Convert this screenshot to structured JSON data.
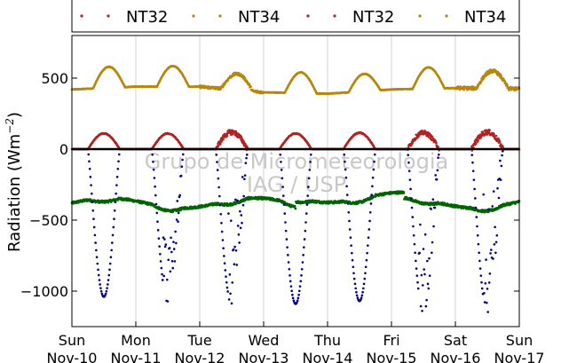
{
  "chart_data": {
    "type": "scatter",
    "ylabel": "Radiation (Wm",
    "ylabel_exponent": "−2",
    "ylabel_close": ")",
    "ylim": [
      -1250,
      800
    ],
    "yticks": [
      {
        "value": 500,
        "label": "500"
      },
      {
        "value": 0,
        "label": "0"
      },
      {
        "value": -500,
        "label": "−500"
      },
      {
        "value": -1000,
        "label": "−1000"
      }
    ],
    "xlim": [
      0,
      7
    ],
    "xticks": [
      {
        "day": 0,
        "weekday": "Sun",
        "date": "Nov-10"
      },
      {
        "day": 1,
        "weekday": "Mon",
        "date": "Nov-11"
      },
      {
        "day": 2,
        "weekday": "Tue",
        "date": "Nov-12"
      },
      {
        "day": 3,
        "weekday": "Wed",
        "date": "Nov-13"
      },
      {
        "day": 4,
        "weekday": "Thu",
        "date": "Nov-14"
      },
      {
        "day": 5,
        "weekday": "Fri",
        "date": "Nov-15"
      },
      {
        "day": 6,
        "weekday": "Sat",
        "date": "Nov-16"
      },
      {
        "day": 7,
        "weekday": "Sun",
        "date": "Nov-17"
      }
    ],
    "grid_x": true,
    "zero_line": true,
    "watermark": [
      "Grupo de Micrometeorologia",
      "IAG / USP"
    ],
    "legend": {
      "placement": "top",
      "entries": [
        {
          "label": "NT32",
          "color": "#b22222"
        },
        {
          "label": "NT34",
          "color": "#b8860b"
        },
        {
          "label": "NT32",
          "color": "#b22222"
        },
        {
          "label": "NT34",
          "color": "#b8860b"
        }
      ]
    },
    "series": [
      {
        "color": "#b8860b",
        "kind": "longwave_down",
        "nightly": [
          420,
          440,
          440,
          400,
          390,
          420,
          430,
          425
        ],
        "peak": [
          580,
          585,
          530,
          540,
          530,
          575,
          550
        ],
        "noise": [
          0,
          0,
          15,
          0,
          0,
          0,
          20
        ]
      },
      {
        "color": "#b22222",
        "kind": "shortwave_reflected",
        "peak": [
          110,
          110,
          120,
          110,
          115,
          115,
          120
        ],
        "noise": [
          0,
          0,
          30,
          0,
          0,
          25,
          30
        ]
      },
      {
        "color": "#006400",
        "kind": "longwave_net",
        "mean": -380
      },
      {
        "color": "#000080",
        "kind": "shortwave_down",
        "peak": [
          -1040,
          -1080,
          -1100,
          -1090,
          -1070,
          -1150,
          -1150
        ],
        "noise": [
          0,
          0.22,
          0.38,
          0,
          0,
          0.3,
          0.4
        ]
      }
    ]
  }
}
